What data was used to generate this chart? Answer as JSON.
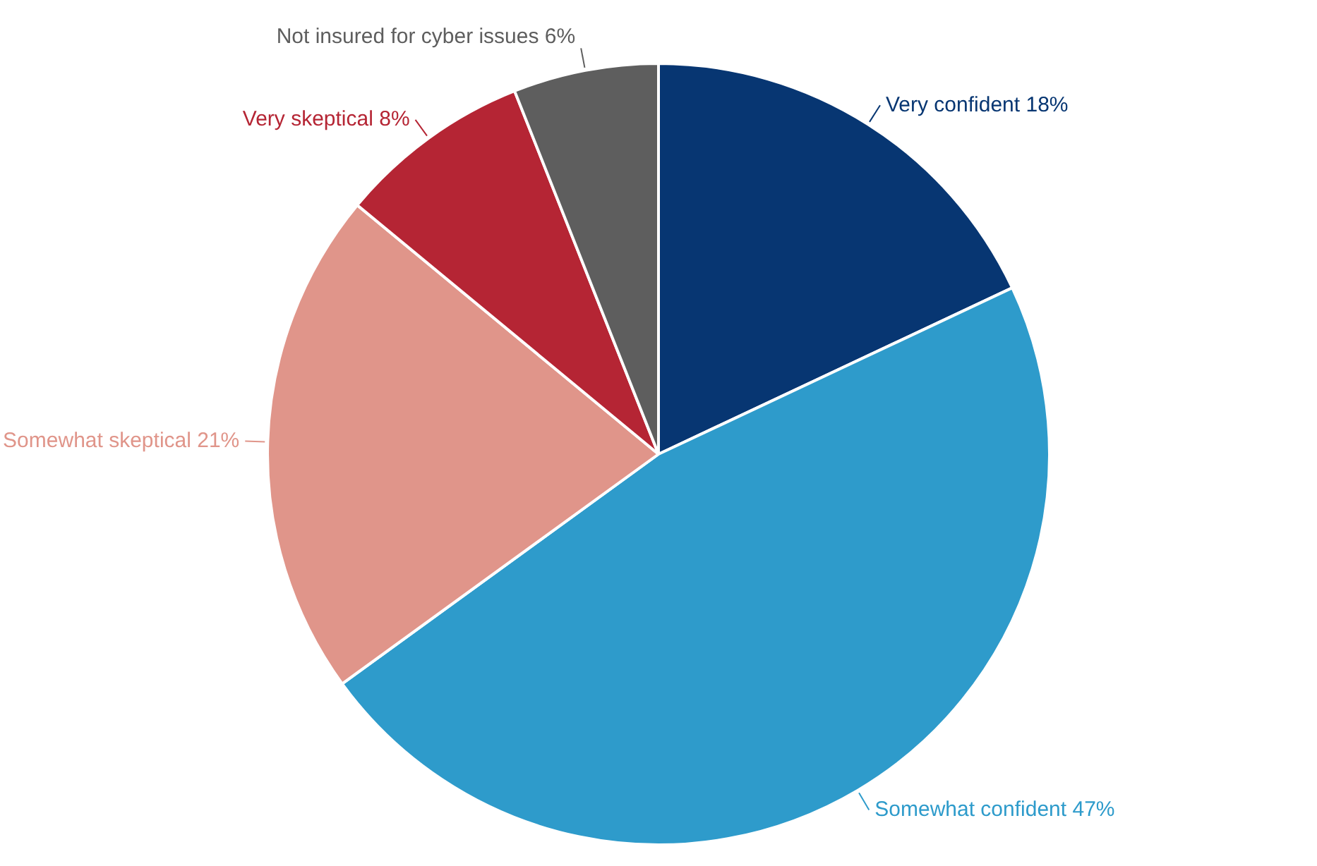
{
  "chart_data": {
    "type": "pie",
    "categories": [
      "Very confident",
      "Somewhat confident",
      "Somewhat skeptical",
      "Very skeptical",
      "Not insured for cyber issues"
    ],
    "values": [
      18,
      47,
      21,
      8,
      6
    ],
    "value_labels": [
      "18%",
      "47%",
      "21%",
      "8%",
      "6%"
    ],
    "colors": [
      "#073672",
      "#2e9bcb",
      "#e0958a",
      "#b52534",
      "#5e5e5e"
    ],
    "legend": false
  }
}
